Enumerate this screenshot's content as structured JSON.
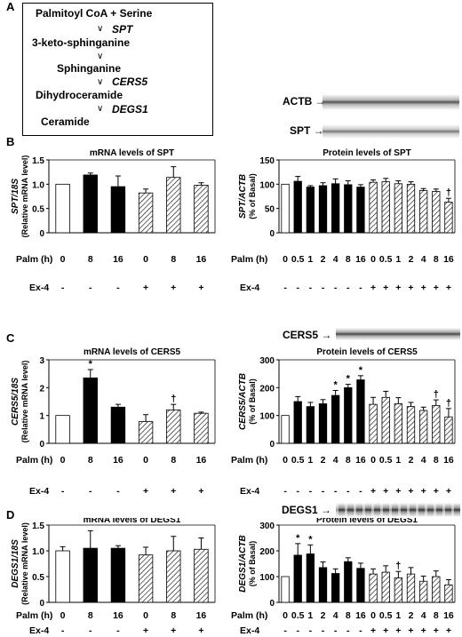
{
  "panel_letters": [
    "A",
    "B",
    "C",
    "D"
  ],
  "pathway": {
    "steps": [
      "Palmitoyl CoA + Serine",
      "3-keto-sphinganine",
      "Sphinganine",
      "Dihydroceramide",
      "Ceramide"
    ],
    "enzymes": [
      "SPT",
      "CERS5",
      "DEGS1"
    ]
  },
  "blots": {
    "actb": "ACTB",
    "spt": "SPT",
    "cers5": "CERS5",
    "degs1": "DEGS1"
  },
  "colors": {
    "basal": "#ffffff",
    "palm": "#000000",
    "ex4": "hatched"
  },
  "chart_data": [
    {
      "type": "bar",
      "title": "mRNA levels of SPT",
      "ylabel": "SPT/18S (Relative mRNA level)",
      "ylim": [
        0,
        1.5
      ],
      "yticks": [
        "0",
        "0.5",
        "1.0",
        "1.5"
      ],
      "row_labels": [
        "Palm (h)",
        "Ex-4"
      ],
      "categories": [
        "0",
        "8",
        "16",
        "0",
        "8",
        "16"
      ],
      "ex4": [
        "-",
        "-",
        "-",
        "+",
        "+",
        "+"
      ],
      "values": [
        1.0,
        1.19,
        0.95,
        0.82,
        1.14,
        0.98
      ],
      "errors": [
        0,
        0.04,
        0.22,
        0.08,
        0.22,
        0.05
      ],
      "annotations": [
        "",
        "",
        "",
        "",
        "",
        ""
      ]
    },
    {
      "type": "bar",
      "title": "Protein levels of SPT",
      "ylabel": "SPT/ACTB (% of Basal)",
      "ylim": [
        0,
        150
      ],
      "yticks": [
        "0",
        "50",
        "100",
        "150"
      ],
      "row_labels": [
        "Palm (h)",
        "Ex-4"
      ],
      "categories": [
        "0",
        "0.5",
        "1",
        "2",
        "4",
        "8",
        "16",
        "0",
        "0.5",
        "1",
        "2",
        "4",
        "8",
        "16"
      ],
      "ex4": [
        "-",
        "-",
        "-",
        "-",
        "-",
        "-",
        "-",
        "+",
        "+",
        "+",
        "+",
        "+",
        "+",
        "+"
      ],
      "values": [
        100,
        106,
        94,
        97,
        101,
        99,
        94,
        104,
        105,
        101,
        100,
        87,
        85,
        63
      ],
      "errors": [
        0,
        10,
        3,
        6,
        10,
        8,
        5,
        5,
        7,
        6,
        5,
        4,
        5,
        8
      ],
      "annotations": [
        "",
        "",
        "",
        "",
        "",
        "",
        "",
        "",
        "",
        "",
        "",
        "",
        "",
        "†"
      ]
    },
    {
      "type": "bar",
      "title": "mRNA levels of CERS5",
      "ylabel": "CERS5/18S (Relative mRNA level)",
      "ylim": [
        0,
        3
      ],
      "yticks": [
        "0",
        "1",
        "2",
        "3"
      ],
      "row_labels": [
        "Palm (h)",
        "Ex-4"
      ],
      "categories": [
        "0",
        "8",
        "16",
        "0",
        "8",
        "16"
      ],
      "ex4": [
        "-",
        "-",
        "-",
        "+",
        "+",
        "+"
      ],
      "values": [
        1.0,
        2.35,
        1.3,
        0.78,
        1.2,
        1.08
      ],
      "errors": [
        0,
        0.3,
        0.1,
        0.25,
        0.2,
        0.04
      ],
      "annotations": [
        "",
        "*",
        "",
        "",
        "†",
        ""
      ]
    },
    {
      "type": "bar",
      "title": "Protein levels of CERS5",
      "ylabel": "CERS5/ACTB (% of Basal)",
      "ylim": [
        0,
        300
      ],
      "yticks": [
        "0",
        "100",
        "200",
        "300"
      ],
      "row_labels": [
        "Palm (h)",
        "Ex-4"
      ],
      "categories": [
        "0",
        "0.5",
        "1",
        "2",
        "4",
        "8",
        "16",
        "0",
        "0.5",
        "1",
        "2",
        "4",
        "8",
        "16"
      ],
      "ex4": [
        "-",
        "-",
        "-",
        "-",
        "-",
        "-",
        "-",
        "+",
        "+",
        "+",
        "+",
        "+",
        "+",
        "+"
      ],
      "values": [
        100,
        150,
        132,
        142,
        172,
        200,
        228,
        140,
        165,
        142,
        132,
        118,
        136,
        95
      ],
      "errors": [
        0,
        18,
        15,
        15,
        18,
        12,
        15,
        25,
        22,
        22,
        15,
        12,
        20,
        30
      ],
      "annotations": [
        "",
        "",
        "",
        "",
        "*",
        "*",
        "*",
        "",
        "",
        "",
        "",
        "",
        "†",
        "†"
      ]
    },
    {
      "type": "bar",
      "title": "mRNA levels of DEGS1",
      "ylabel": "DEGS1/18S (Relative mRNA level)",
      "ylim": [
        0,
        1.5
      ],
      "yticks": [
        "0",
        "0.5",
        "1.0",
        "1.5"
      ],
      "row_labels": [
        "Palm (h)",
        "Ex-4"
      ],
      "categories": [
        "0",
        "8",
        "16",
        "0",
        "8",
        "16"
      ],
      "ex4": [
        "-",
        "-",
        "-",
        "+",
        "+",
        "+"
      ],
      "values": [
        1.0,
        1.05,
        1.05,
        0.92,
        1.0,
        1.03
      ],
      "errors": [
        0.08,
        0.34,
        0.05,
        0.15,
        0.28,
        0.22
      ],
      "annotations": [
        "",
        "",
        "",
        "",
        "",
        ""
      ]
    },
    {
      "type": "bar",
      "title": "Protein levels of DEGS1",
      "ylabel": "DEGS1/ACTB (% of Basal)",
      "ylim": [
        0,
        300
      ],
      "yticks": [
        "0",
        "100",
        "200",
        "300"
      ],
      "row_labels": [
        "Palm (h)",
        "Ex-4"
      ],
      "categories": [
        "0",
        "0.5",
        "1",
        "2",
        "4",
        "8",
        "16",
        "0",
        "0.5",
        "1",
        "2",
        "4",
        "8",
        "16"
      ],
      "ex4": [
        "-",
        "-",
        "-",
        "-",
        "-",
        "-",
        "-",
        "+",
        "+",
        "+",
        "+",
        "+",
        "+",
        "+"
      ],
      "values": [
        100,
        183,
        188,
        135,
        112,
        158,
        132,
        110,
        117,
        95,
        110,
        82,
        100,
        68
      ],
      "errors": [
        0,
        45,
        35,
        22,
        18,
        15,
        20,
        20,
        25,
        25,
        25,
        20,
        22,
        20
      ],
      "annotations": [
        "",
        "*",
        "*",
        "",
        "",
        "",
        "",
        "",
        "",
        "†",
        "",
        "",
        "",
        ""
      ]
    }
  ]
}
